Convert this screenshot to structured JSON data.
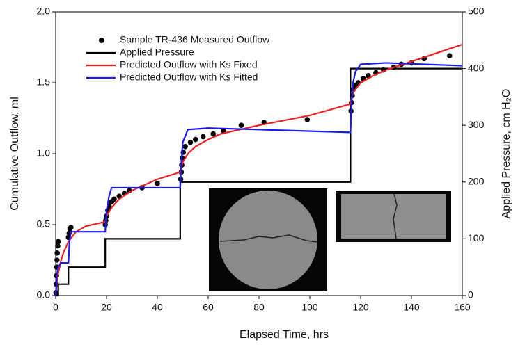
{
  "chart_data": {
    "type": "line",
    "xlabel": "Elapsed Time, hrs",
    "ylabel": "Cumulative Outflow, ml",
    "y2label": "Applied Pressure, cm H₂O",
    "xlim": [
      0,
      160
    ],
    "xticks": [
      0,
      20,
      40,
      60,
      80,
      100,
      120,
      140,
      160
    ],
    "ylim": [
      0,
      2
    ],
    "yticks": [
      {
        "value": 0,
        "label": "0.0"
      },
      {
        "value": 0.5,
        "label": "0.5"
      },
      {
        "value": 1,
        "label": "1.0"
      },
      {
        "value": 1.5,
        "label": "1.5"
      },
      {
        "value": 2,
        "label": "2.0"
      }
    ],
    "y2lim": [
      0,
      500
    ],
    "y2ticks": [
      0,
      100,
      200,
      300,
      400,
      500
    ],
    "series": [
      {
        "name": "Sample TR-436 Measured Outflow",
        "mode": "markers",
        "color": "#000000",
        "x": [
          0.1,
          0.2,
          0.3,
          0.4,
          0.5,
          0.6,
          0.8,
          1,
          5,
          5.3,
          5.6,
          6,
          19.5,
          19.7,
          20,
          20.5,
          21,
          22,
          23,
          25,
          27,
          29,
          34,
          40,
          49.2,
          49.4,
          49.6,
          49.8,
          50.2,
          51,
          53,
          55,
          58,
          62,
          66,
          73,
          82,
          99,
          116.2,
          116.4,
          116.7,
          117,
          118,
          119,
          121,
          123,
          126,
          129,
          133,
          136,
          140,
          145,
          155
        ],
        "values": [
          0.02,
          0.08,
          0.14,
          0.2,
          0.25,
          0.3,
          0.35,
          0.38,
          0.41,
          0.44,
          0.47,
          0.48,
          0.5,
          0.53,
          0.56,
          0.6,
          0.63,
          0.66,
          0.68,
          0.7,
          0.72,
          0.74,
          0.76,
          0.79,
          0.82,
          0.87,
          0.92,
          0.97,
          1.01,
          1.05,
          1.08,
          1.1,
          1.12,
          1.14,
          1.16,
          1.2,
          1.22,
          1.24,
          1.3,
          1.36,
          1.41,
          1.45,
          1.48,
          1.5,
          1.53,
          1.55,
          1.57,
          1.59,
          1.61,
          1.63,
          1.64,
          1.67,
          1.69
        ]
      },
      {
        "name": "Applied Pressure",
        "mode": "line",
        "axis": "y2",
        "color": "#000000",
        "x": [
          0,
          1,
          1,
          5,
          5,
          19.5,
          19.5,
          49,
          49,
          116,
          116,
          160
        ],
        "values": [
          0,
          0,
          20,
          20,
          50,
          50,
          100,
          100,
          200,
          200,
          400,
          400
        ]
      },
      {
        "name": "Predicted Outflow with Ks Fixed",
        "mode": "line",
        "color": "#ee2020",
        "x": [
          0,
          0.5,
          1,
          2,
          3,
          5,
          8,
          12,
          19.5,
          20,
          22,
          25,
          30,
          40,
          49,
          50,
          52,
          55,
          60,
          65,
          80,
          100,
          116,
          116.5,
          117,
          120,
          125,
          130,
          140,
          150,
          160
        ],
        "values": [
          0,
          0.1,
          0.16,
          0.24,
          0.3,
          0.38,
          0.45,
          0.49,
          0.52,
          0.56,
          0.62,
          0.68,
          0.74,
          0.82,
          0.87,
          0.94,
          1.0,
          1.05,
          1.1,
          1.14,
          1.2,
          1.27,
          1.35,
          1.4,
          1.43,
          1.5,
          1.55,
          1.59,
          1.65,
          1.71,
          1.77
        ]
      },
      {
        "name": "Predicted Outflow with Ks Fitted",
        "mode": "line",
        "color": "#1a1aee",
        "x": [
          0,
          0.5,
          1,
          2,
          5,
          5.5,
          6,
          19.5,
          20,
          21,
          22,
          49,
          49.5,
          50,
          52,
          60,
          80,
          116,
          116.5,
          117,
          118,
          120,
          130,
          160
        ],
        "values": [
          0,
          0.15,
          0.2,
          0.23,
          0.23,
          0.4,
          0.45,
          0.45,
          0.6,
          0.7,
          0.76,
          0.76,
          0.95,
          1.08,
          1.17,
          1.18,
          1.17,
          1.15,
          1.38,
          1.5,
          1.58,
          1.63,
          1.64,
          1.62
        ]
      }
    ]
  }
}
